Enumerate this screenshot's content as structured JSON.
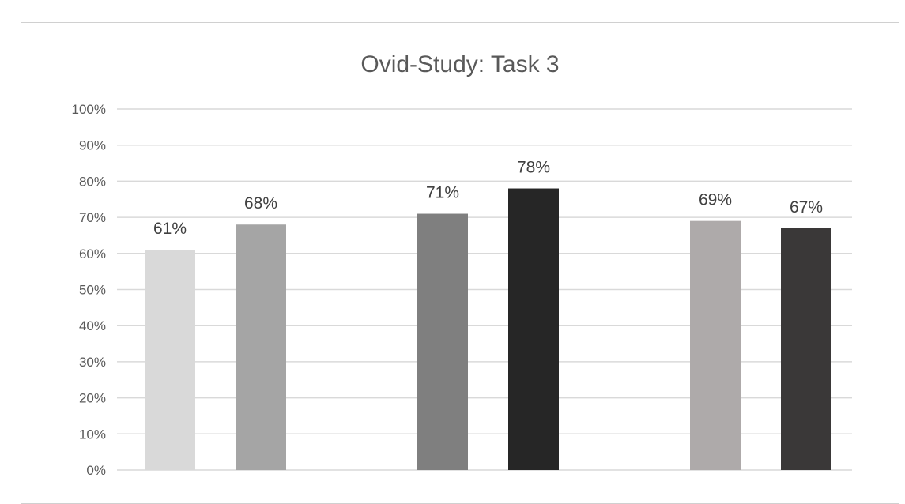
{
  "chart_data": {
    "type": "bar",
    "title": "Ovid-Study: Task 3",
    "categories": [
      "",
      "",
      "",
      "",
      "",
      ""
    ],
    "values": [
      61,
      68,
      71,
      78,
      69,
      67
    ],
    "value_labels": [
      "61%",
      "68%",
      "71%",
      "78%",
      "69%",
      "67%"
    ],
    "colors": [
      "#d9d9d9",
      "#a5a5a5",
      "#7f7f7f",
      "#262626",
      "#aeaaaa",
      "#3a3838"
    ],
    "ylim": [
      0,
      100
    ],
    "y_ticks": [
      "0%",
      "10%",
      "20%",
      "30%",
      "40%",
      "50%",
      "60%",
      "70%",
      "80%",
      "90%",
      "100%"
    ],
    "grid": true,
    "legend": "none",
    "xlabel": "",
    "ylabel": ""
  }
}
